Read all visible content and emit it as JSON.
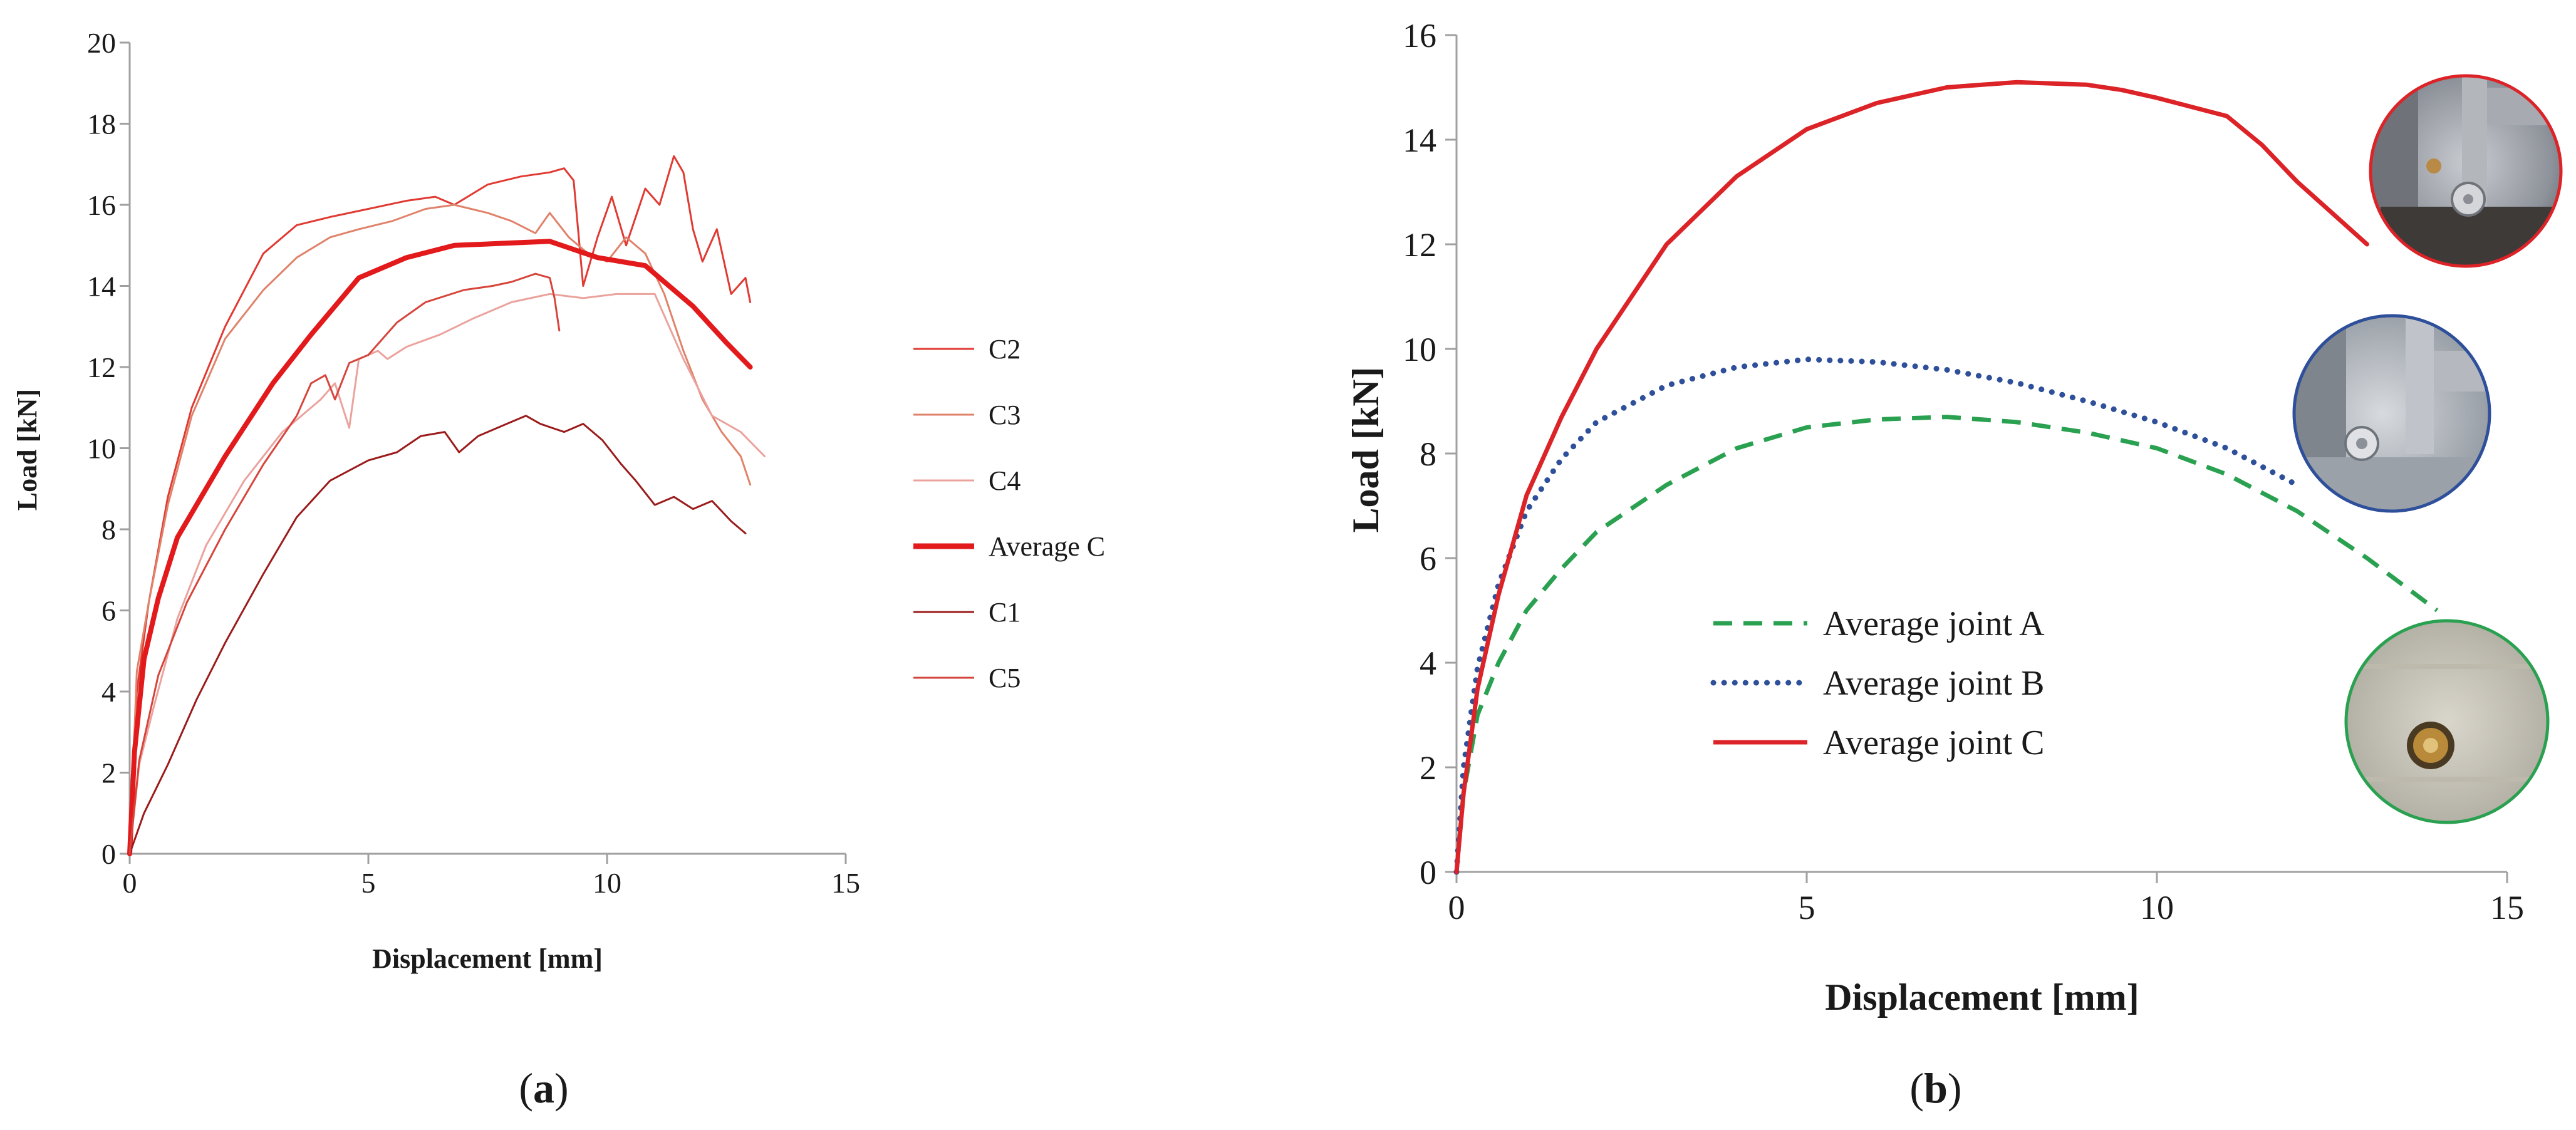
{
  "chart_data": [
    {
      "type": "line",
      "panel_label": "a",
      "title": "",
      "xlabel": "Displacement [mm]",
      "ylabel": "Load [kN]",
      "xlim": [
        0,
        15
      ],
      "ylim": [
        0,
        20
      ],
      "xticks": [
        0,
        5,
        10,
        15
      ],
      "yticks": [
        0,
        2,
        4,
        6,
        8,
        10,
        12,
        14,
        16,
        18,
        20
      ],
      "grid": false,
      "legend_position": "right",
      "series": [
        {
          "name": "C2",
          "color": "#e03a32",
          "width": 3,
          "x": [
            0,
            0.15,
            0.4,
            0.8,
            1.3,
            2,
            2.8,
            3.5,
            4.2,
            5,
            5.8,
            6.4,
            6.8,
            7.5,
            8.2,
            8.8,
            9.1,
            9.3,
            9.5,
            9.8,
            10.1,
            10.4,
            10.8,
            11.1,
            11.4,
            11.6,
            11.8,
            12,
            12.3,
            12.6,
            12.9,
            13
          ],
          "y": [
            0,
            4,
            6.2,
            8.8,
            11,
            13,
            14.8,
            15.5,
            15.7,
            15.9,
            16.1,
            16.2,
            16,
            16.5,
            16.7,
            16.8,
            16.9,
            16.6,
            14,
            15.2,
            16.2,
            15,
            16.4,
            16,
            17.2,
            16.8,
            15.4,
            14.6,
            15.4,
            13.8,
            14.2,
            13.6
          ]
        },
        {
          "name": "C3",
          "color": "#e0826a",
          "width": 3,
          "x": [
            0,
            0.15,
            0.4,
            0.8,
            1.3,
            2,
            2.8,
            3.5,
            4.2,
            4.8,
            5.5,
            6.2,
            6.8,
            7.5,
            8,
            8.5,
            8.8,
            9.2,
            9.6,
            10,
            10.4,
            10.8,
            11.2,
            11.6,
            12,
            12.4,
            12.8,
            13
          ],
          "y": [
            0,
            4.5,
            6.2,
            8.6,
            10.8,
            12.7,
            13.9,
            14.7,
            15.2,
            15.4,
            15.6,
            15.9,
            16,
            15.8,
            15.6,
            15.3,
            15.8,
            15.2,
            14.8,
            14.6,
            15.2,
            14.8,
            13.8,
            12.4,
            11.2,
            10.4,
            9.8,
            9.1
          ]
        },
        {
          "name": "C4",
          "color": "#eba29d",
          "width": 3,
          "x": [
            0,
            0.2,
            0.5,
            1,
            1.6,
            2.4,
            3.2,
            4,
            4.3,
            4.6,
            4.8,
            5.2,
            5.4,
            5.8,
            6.5,
            7.2,
            8,
            8.8,
            9.5,
            10.2,
            11,
            11.6,
            12.2,
            12.8,
            13.3
          ],
          "y": [
            0,
            2.2,
            3.6,
            5.8,
            7.6,
            9.2,
            10.4,
            11.2,
            11.6,
            10.5,
            12.2,
            12.4,
            12.2,
            12.5,
            12.8,
            13.2,
            13.6,
            13.8,
            13.7,
            13.8,
            13.8,
            12.2,
            10.8,
            10.4,
            9.8
          ]
        },
        {
          "name": "Average C",
          "color": "#e31a1c",
          "width": 8,
          "x": [
            0,
            0.1,
            0.3,
            0.6,
            1,
            1.5,
            2,
            3,
            3.8,
            4.8,
            5.8,
            6.8,
            7.8,
            8.8,
            9.8,
            10.8,
            11.8,
            12.5,
            13
          ],
          "y": [
            0,
            2.5,
            4.8,
            6.3,
            7.8,
            8.8,
            9.8,
            11.6,
            12.8,
            14.2,
            14.7,
            15,
            15.05,
            15.1,
            14.7,
            14.5,
            13.5,
            12.6,
            12
          ]
        },
        {
          "name": "C1",
          "color": "#9b1b1b",
          "width": 3,
          "x": [
            0,
            0.3,
            0.8,
            1.4,
            2,
            2.8,
            3.5,
            4.2,
            5,
            5.6,
            6.1,
            6.6,
            6.9,
            7.3,
            7.9,
            8.3,
            8.6,
            9.1,
            9.5,
            9.9,
            10.3,
            10.6,
            11,
            11.4,
            11.8,
            12.2,
            12.6,
            12.9
          ],
          "y": [
            0,
            1,
            2.2,
            3.8,
            5.2,
            6.9,
            8.3,
            9.2,
            9.7,
            9.9,
            10.3,
            10.4,
            9.9,
            10.3,
            10.6,
            10.8,
            10.6,
            10.4,
            10.6,
            10.2,
            9.6,
            9.2,
            8.6,
            8.8,
            8.5,
            8.7,
            8.2,
            7.9
          ]
        },
        {
          "name": "C5",
          "color": "#d6453c",
          "width": 3,
          "x": [
            0,
            0.2,
            0.6,
            1.2,
            2,
            2.8,
            3.5,
            3.8,
            4.1,
            4.3,
            4.6,
            5,
            5.6,
            6.2,
            7,
            7.6,
            8,
            8.5,
            8.8,
            8.9,
            9
          ],
          "y": [
            0,
            2.3,
            4.4,
            6.2,
            8,
            9.6,
            10.8,
            11.6,
            11.8,
            11.2,
            12.1,
            12.3,
            13.1,
            13.6,
            13.9,
            14,
            14.1,
            14.3,
            14.2,
            13.7,
            12.9
          ]
        }
      ]
    },
    {
      "type": "line",
      "panel_label": "b",
      "title": "",
      "xlabel": "Displacement [mm]",
      "ylabel": "Load [kN]",
      "xlim": [
        0,
        15
      ],
      "ylim": [
        0,
        16
      ],
      "xticks": [
        0,
        5,
        10,
        15
      ],
      "yticks": [
        0,
        2,
        4,
        6,
        8,
        10,
        12,
        14,
        16
      ],
      "grid": false,
      "legend_position": "center-bottom",
      "series": [
        {
          "name": "Average joint A",
          "color": "#2aa150",
          "style": "dashed",
          "width": 7,
          "x": [
            0,
            0.1,
            0.3,
            0.6,
            1,
            1.5,
            2,
            3,
            4,
            5,
            6,
            7,
            8,
            9,
            10,
            11,
            12,
            13,
            14
          ],
          "y": [
            0,
            1.5,
            3,
            4,
            5,
            5.8,
            6.5,
            7.4,
            8.1,
            8.5,
            8.65,
            8.7,
            8.6,
            8.4,
            8.1,
            7.6,
            6.9,
            6,
            5
          ]
        },
        {
          "name": "Average joint B",
          "color": "#2e4f9a",
          "style": "dotted",
          "width": 9,
          "x": [
            0,
            0.1,
            0.3,
            0.6,
            1,
            1.5,
            2,
            3,
            4,
            5,
            6,
            7,
            8,
            9,
            10,
            11,
            12
          ],
          "y": [
            0,
            2,
            3.9,
            5.5,
            6.9,
            7.9,
            8.6,
            9.3,
            9.65,
            9.8,
            9.75,
            9.6,
            9.35,
            9,
            8.6,
            8.1,
            7.4
          ]
        },
        {
          "name": "Average joint C",
          "color": "#dc2327",
          "style": "solid",
          "width": 7,
          "x": [
            0,
            0.1,
            0.3,
            0.6,
            1,
            1.5,
            2,
            3,
            4,
            5,
            6,
            7,
            8,
            9,
            9.5,
            10,
            11,
            11.5,
            12,
            12.5,
            13
          ],
          "y": [
            0,
            1.5,
            3.5,
            5.3,
            7.2,
            8.7,
            10,
            12,
            13.3,
            14.2,
            14.7,
            15,
            15.1,
            15.05,
            14.95,
            14.8,
            14.45,
            13.9,
            13.2,
            12.6,
            12
          ]
        }
      ],
      "inset_photos": [
        {
          "label": "joint-c-photo",
          "ring_color": "#dc2327"
        },
        {
          "label": "joint-b-photo",
          "ring_color": "#2e4f9a"
        },
        {
          "label": "joint-a-photo",
          "ring_color": "#2aa150"
        }
      ]
    }
  ],
  "captions": {
    "a": "a",
    "b": "b"
  }
}
